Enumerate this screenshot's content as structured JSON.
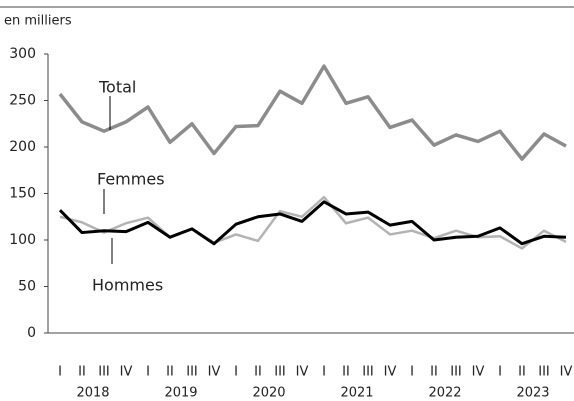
{
  "chart_data": {
    "type": "line",
    "y_label": "en milliers",
    "categories": [
      "I",
      "II",
      "III",
      "IV",
      "I",
      "II",
      "III",
      "IV",
      "I",
      "II",
      "III",
      "IV",
      "I",
      "II",
      "III",
      "IV",
      "I",
      "II",
      "III",
      "IV",
      "I",
      "II",
      "III",
      "IV"
    ],
    "years": [
      "2018",
      "2019",
      "2020",
      "2021",
      "2022",
      "2023"
    ],
    "series": [
      {
        "name": "Total",
        "color": "#8c8c8c",
        "values": [
          257,
          227,
          217,
          227,
          243,
          205,
          225,
          193,
          222,
          223,
          260,
          247,
          287,
          247,
          254,
          221,
          229,
          202,
          213,
          206,
          217,
          187,
          214,
          201
        ]
      },
      {
        "name": "Femmes",
        "color": "#b3b3b3",
        "values": [
          125,
          119,
          108,
          118,
          124,
          103,
          112,
          97,
          106,
          99,
          131,
          125,
          146,
          118,
          124,
          106,
          110,
          102,
          110,
          103,
          104,
          91,
          110,
          98
        ]
      },
      {
        "name": "Hommes",
        "color": "#000000",
        "values": [
          132,
          108,
          110,
          109,
          119,
          103,
          112,
          96,
          117,
          125,
          128,
          120,
          141,
          128,
          130,
          116,
          120,
          100,
          103,
          104,
          113,
          96,
          104,
          103
        ]
      }
    ],
    "ylim": [
      0,
      300
    ],
    "yticks": [
      0,
      50,
      100,
      150,
      200,
      250,
      300
    ],
    "grid": false
  }
}
